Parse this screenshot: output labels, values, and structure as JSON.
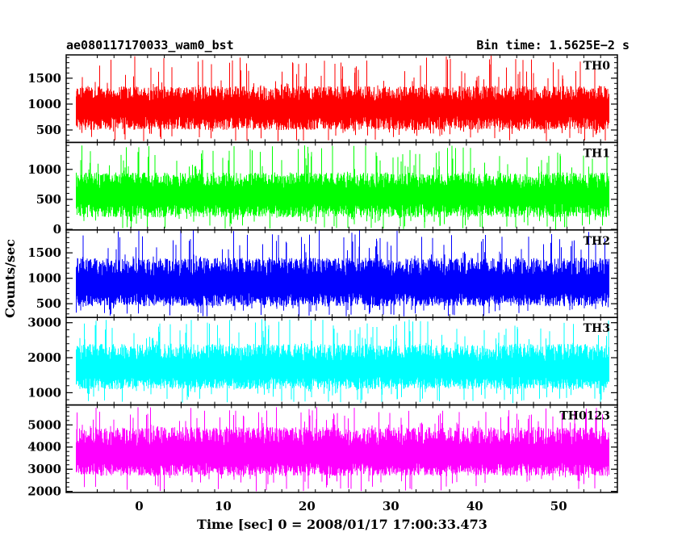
{
  "chart_data": {
    "type": "line",
    "header_left": "ae080117170033_wam0_bst",
    "header_right": "Bin time: 1.5625E−2 s",
    "xlabel": "Time [sec] 0 = 2008/01/17 17:00:33.473",
    "ylabel": "Counts/sec",
    "xlim": [
      -8.7,
      57
    ],
    "x_data_range": [
      -7.5,
      56
    ],
    "x_ticks": [
      0,
      10,
      20,
      30,
      40,
      50
    ],
    "panels": [
      {
        "name": "TH0",
        "color": "#ff0000",
        "ylim": [
          260,
          1950
        ],
        "y_ticks": [
          500,
          1000,
          1500
        ],
        "typical_low": 500,
        "mean": 900,
        "typical_high": 1350,
        "min_extent": 280,
        "max_extent": 1950
      },
      {
        "name": "TH1",
        "color": "#00ff00",
        "ylim": [
          -10,
          1450
        ],
        "y_ticks": [
          0,
          500,
          1000
        ],
        "typical_low": 200,
        "mean": 550,
        "typical_high": 950,
        "min_extent": 0,
        "max_extent": 1400
      },
      {
        "name": "TH2",
        "color": "#0000ff",
        "ylim": [
          230,
          1950
        ],
        "y_ticks": [
          500,
          1000,
          1500
        ],
        "typical_low": 450,
        "mean": 850,
        "typical_high": 1400,
        "min_extent": 250,
        "max_extent": 1950
      },
      {
        "name": "TH3",
        "color": "#00ffff",
        "ylim": [
          650,
          3150
        ],
        "y_ticks": [
          1000,
          2000,
          3000
        ],
        "typical_low": 1100,
        "mean": 1650,
        "typical_high": 2400,
        "min_extent": 700,
        "max_extent": 3100
      },
      {
        "name": "TH0123",
        "color": "#ff00ff",
        "ylim": [
          1950,
          5900
        ],
        "y_ticks": [
          2000,
          3000,
          4000,
          5000
        ],
        "typical_low": 2700,
        "mean": 3600,
        "typical_high": 4900,
        "min_extent": 2000,
        "max_extent": 5800
      }
    ]
  }
}
